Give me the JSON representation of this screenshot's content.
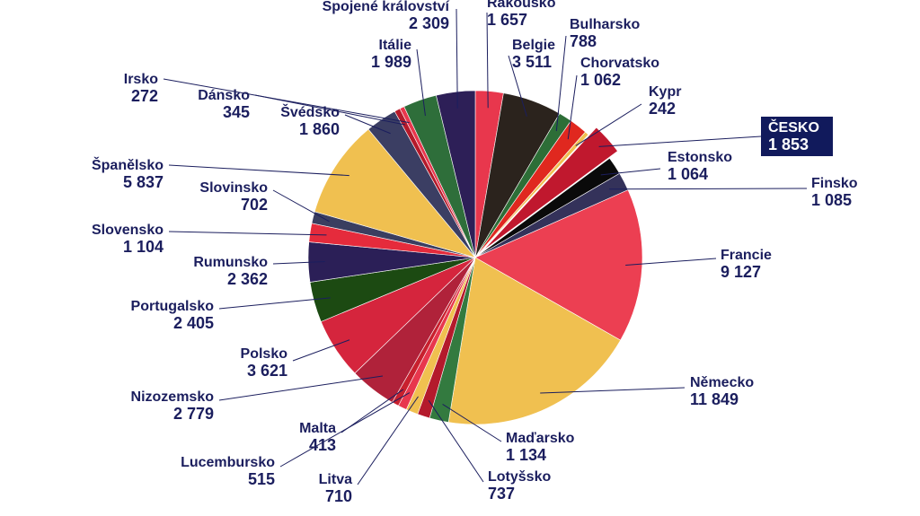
{
  "chart_data": {
    "type": "pie",
    "title": "",
    "start_angle_deg": 0,
    "direction": "clockwise",
    "highlight": "ČESKO",
    "slices": [
      {
        "name": "Rakousko",
        "value": 1657,
        "value_label": "1 657",
        "color": "#e8374d"
      },
      {
        "name": "Belgie",
        "value": 3511,
        "value_label": "3 511",
        "color": "#2b231d"
      },
      {
        "name": "Bulharsko",
        "value": 788,
        "value_label": "788",
        "color": "#2d6e37"
      },
      {
        "name": "Chorvatsko",
        "value": 1062,
        "value_label": "1 062",
        "color": "#e0281f"
      },
      {
        "name": "Kypr",
        "value": 242,
        "value_label": "242",
        "color": "#f0c050"
      },
      {
        "name": "ČESKO",
        "value": 1853,
        "value_label": "1 853",
        "color": "#c0182e"
      },
      {
        "name": "Estonsko",
        "value": 1064,
        "value_label": "1 064",
        "color": "#0a0a0a"
      },
      {
        "name": "Finsko",
        "value": 1085,
        "value_label": "1 085",
        "color": "#34325a"
      },
      {
        "name": "Francie",
        "value": 9127,
        "value_label": "9 127",
        "color": "#ec3f52"
      },
      {
        "name": "Německo",
        "value": 11849,
        "value_label": "11 849",
        "color": "#f0c050"
      },
      {
        "name": "Maďarsko",
        "value": 1134,
        "value_label": "1 134",
        "color": "#337a3f"
      },
      {
        "name": "Lotyšsko",
        "value": 737,
        "value_label": "737",
        "color": "#b41a2c"
      },
      {
        "name": "Litva",
        "value": 710,
        "value_label": "710",
        "color": "#f0c050"
      },
      {
        "name": "Lucembursko",
        "value": 515,
        "value_label": "515",
        "color": "#e8374d"
      },
      {
        "name": "Malta",
        "value": 413,
        "value_label": "413",
        "color": "#c8202e"
      },
      {
        "name": "Nizozemsko",
        "value": 2779,
        "value_label": "2 779",
        "color": "#b0223a"
      },
      {
        "name": "Polsko",
        "value": 3621,
        "value_label": "3 621",
        "color": "#d5253d"
      },
      {
        "name": "Portugalsko",
        "value": 2405,
        "value_label": "2 405",
        "color": "#1c4a12"
      },
      {
        "name": "Rumunsko",
        "value": 2362,
        "value_label": "2 362",
        "color": "#2b1f57"
      },
      {
        "name": "Slovensko",
        "value": 1104,
        "value_label": "1 104",
        "color": "#e52b3c"
      },
      {
        "name": "Slovinsko",
        "value": 702,
        "value_label": "702",
        "color": "#3a3e60"
      },
      {
        "name": "Španělsko",
        "value": 5837,
        "value_label": "5 837",
        "color": "#f0c050"
      },
      {
        "name": "Švédsko",
        "value": 1860,
        "value_label": "1 860",
        "color": "#3b3e63"
      },
      {
        "name": "Dánsko",
        "value": 345,
        "value_label": "345",
        "color": "#b51a2b"
      },
      {
        "name": "Irsko",
        "value": 272,
        "value_label": "272",
        "color": "#e8374d"
      },
      {
        "name": "Itálie",
        "value": 1989,
        "value_label": "1 989",
        "color": "#2e6e3a"
      },
      {
        "name": "Spojené království",
        "value": 2309,
        "value_label": "2 309",
        "color": "#2d1f57"
      }
    ]
  }
}
